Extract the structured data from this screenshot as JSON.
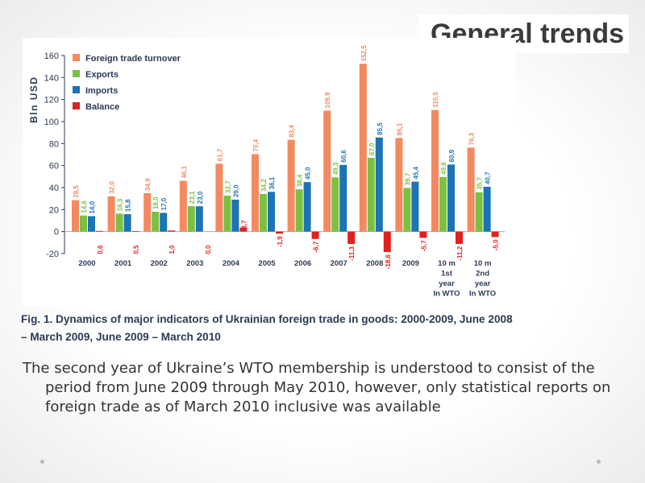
{
  "slide": {
    "title": "General trends",
    "caption": "Fig. 1. Dynamics of major indicators of Ukrainian foreign trade in goods: 2000-2009, June 2008 – March 2009, June 2009 – March 2010",
    "body": "The second year of Ukraine’s WTO membership is understood to consist of the period from June 2009 through May 2010, however, only statistical reports on foreign trade as of March 2010 inclusive was available"
  },
  "colors": {
    "turnover": "#f4895f",
    "exports": "#7ac142",
    "imports": "#1c73b6",
    "balance": "#e2201e",
    "axis_text": "#2d3a54"
  },
  "chart_data": {
    "type": "bar",
    "ylabel": "Bln USD",
    "ylim": [
      -20,
      160
    ],
    "yticks": [
      "-20",
      "0",
      "20",
      "40",
      "60",
      "80",
      "100",
      "120",
      "140",
      "160"
    ],
    "ytick_values": [
      -20,
      0,
      20,
      40,
      60,
      80,
      100,
      120,
      140,
      160
    ],
    "categories": [
      [
        "2000"
      ],
      [
        "2001"
      ],
      [
        "2002"
      ],
      [
        "2003"
      ],
      [
        "2004"
      ],
      [
        "2005"
      ],
      [
        "2006"
      ],
      [
        "2007"
      ],
      [
        "2008"
      ],
      [
        "2009"
      ],
      [
        "10  m",
        "1st",
        "year",
        "In WTO"
      ],
      [
        "10  m",
        "2nd",
        "year",
        "In WTO"
      ]
    ],
    "legend_position": "top-left",
    "series": [
      {
        "name": "Foreign trade turnover",
        "color_key": "turnover",
        "values": [
          28.5,
          32.0,
          34.9,
          46.1,
          61.7,
          70.4,
          83.4,
          109.9,
          152.5,
          85.1,
          110.5,
          76.3
        ],
        "labels": [
          "28,5",
          "32,0",
          "34,9",
          "46,1",
          "61,7",
          "70,4",
          "83,4",
          "109,9",
          "152,5",
          "85,1",
          "110,5",
          "76,3"
        ]
      },
      {
        "name": "Exports",
        "color_key": "exports",
        "values": [
          14.6,
          16.3,
          18.0,
          23.1,
          32.7,
          34.2,
          38.4,
          49.3,
          67.0,
          39.7,
          49.6,
          35.7
        ],
        "labels": [
          "14,6",
          "16,3",
          "18,0",
          "23,1",
          "32,7",
          "34,2",
          "38,4",
          "49,3",
          "67,0",
          "39,7",
          "49,6",
          "35,7"
        ]
      },
      {
        "name": "Imports",
        "color_key": "imports",
        "values": [
          14.0,
          15.8,
          17.0,
          23.0,
          29.0,
          36.1,
          45.0,
          60.6,
          85.5,
          45.4,
          60.9,
          40.7
        ],
        "labels": [
          "14,0",
          "15,8",
          "17,0",
          "23,0",
          "29,0",
          "36,1",
          "45,0",
          "60,6",
          "85,5",
          "45,4",
          "60,9",
          "40,7"
        ]
      },
      {
        "name": "Balance",
        "color_key": "balance",
        "values": [
          0.6,
          0.5,
          1.0,
          0.0,
          3.7,
          -1.9,
          -6.7,
          -11.3,
          -18.6,
          -5.7,
          -11.2,
          -5.0
        ],
        "labels": [
          "0,6",
          "0,5",
          "1,0",
          "0,0",
          "3,7",
          "-1,9",
          "-6,7",
          "-11,3",
          "-18,6",
          "-5,7",
          "-11,2",
          "-5,0"
        ]
      }
    ]
  }
}
